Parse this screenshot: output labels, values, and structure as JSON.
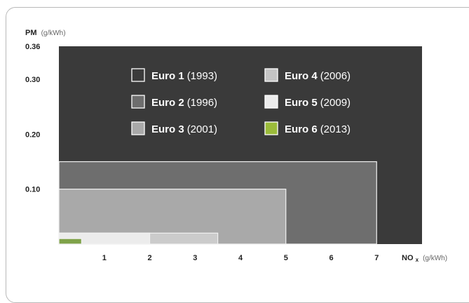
{
  "chart_data": {
    "type": "area",
    "title": "",
    "ylabel": "PM",
    "ylabel_unit": "(g/kWh)",
    "xlabel": "NO",
    "xlabel_subscript": "x",
    "xlabel_unit": "(g/kWh)",
    "xlim": [
      0,
      8
    ],
    "ylim": [
      0,
      0.36
    ],
    "x_ticks": [
      {
        "value": 1,
        "label": "1"
      },
      {
        "value": 2,
        "label": "2"
      },
      {
        "value": 3,
        "label": "3"
      },
      {
        "value": 4,
        "label": "4"
      },
      {
        "value": 5,
        "label": "5"
      },
      {
        "value": 6,
        "label": "6"
      },
      {
        "value": 7,
        "label": "7"
      }
    ],
    "y_ticks": [
      {
        "value": 0.1,
        "label": "0.10"
      },
      {
        "value": 0.2,
        "label": "0.20"
      },
      {
        "value": 0.3,
        "label": "0.30"
      },
      {
        "value": 0.36,
        "label": "0.36"
      }
    ],
    "grid": false,
    "legend_position": "top-center",
    "series": [
      {
        "name": "Euro 1",
        "year": "(1993)",
        "nox_limit": 8.0,
        "pm_limit": 0.36,
        "color": "#3a3a3a"
      },
      {
        "name": "Euro 2",
        "year": "(1996)",
        "nox_limit": 7.0,
        "pm_limit": 0.15,
        "color": "#6e6e6e"
      },
      {
        "name": "Euro 3",
        "year": "(2001)",
        "nox_limit": 5.0,
        "pm_limit": 0.1,
        "color": "#a9a9a9"
      },
      {
        "name": "Euro 4",
        "year": "(2006)",
        "nox_limit": 3.5,
        "pm_limit": 0.02,
        "color": "#cbcbcb"
      },
      {
        "name": "Euro 5",
        "year": "(2009)",
        "nox_limit": 2.0,
        "pm_limit": 0.02,
        "color": "#ececec"
      },
      {
        "name": "Euro 6",
        "year": "(2013)",
        "nox_limit": 0.5,
        "pm_limit": 0.01,
        "color": "#7fa24a"
      }
    ],
    "legend_swatch_colors": [
      "#3a3a3a",
      "#6e6e6e",
      "#a9a9a9",
      "#c4c4c4",
      "#ececec",
      "#9bbb3a"
    ]
  }
}
